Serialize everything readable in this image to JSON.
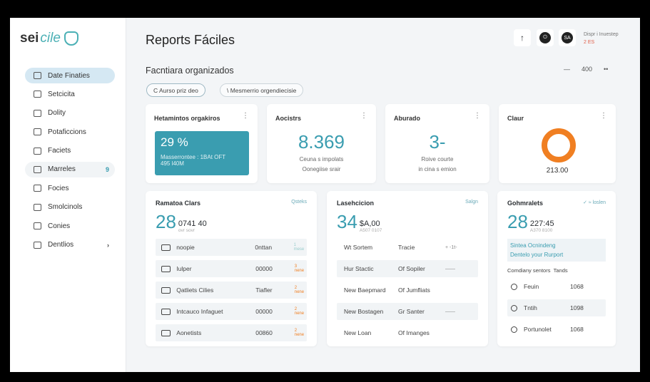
{
  "logo": {
    "text_a": "sei",
    "text_b": "cile"
  },
  "sidebar": {
    "items": [
      {
        "label": "Date Finaties",
        "icon": "document-icon"
      },
      {
        "label": "Setcicita",
        "icon": "home-icon"
      },
      {
        "label": "Dolity",
        "icon": "calendar-icon"
      },
      {
        "label": "Potaficcions",
        "icon": "report-icon"
      },
      {
        "label": "Faciets",
        "icon": "tooth-icon"
      },
      {
        "label": "Marreles",
        "icon": "file-icon",
        "badge": "9"
      },
      {
        "label": "Focies",
        "icon": "chat-icon"
      },
      {
        "label": "Smolcinols",
        "icon": "clipboard-icon"
      },
      {
        "label": "Conies",
        "icon": "settings-icon"
      },
      {
        "label": "Dentlios",
        "icon": "grid-icon",
        "chevron": "›"
      }
    ]
  },
  "header": {
    "title": "Reports Fáciles",
    "upload_icon": "↑",
    "user_name": "Dispr i Inuestep",
    "user_status": "2 ES"
  },
  "section": {
    "title": "Facntiara organizados",
    "zoom_minus": "—",
    "zoom_value": "400",
    "zoom_more": "••",
    "chips": [
      "C Aurso priz deo",
      "\\ Mesmerrio orgendiecisie"
    ]
  },
  "kpis": [
    {
      "title": "Hetamintos orgakiros",
      "value": "29 %",
      "detail1": "Masserrontee : 1BAt OFT",
      "detail2": "495 l40M"
    },
    {
      "title": "Aocistrs",
      "value": "8.369",
      "detail1": "Ceuna s impolats",
      "detail2": "Oonegiise srair"
    },
    {
      "title": "Aburado",
      "value": "3-",
      "detail1": "Roive courte",
      "detail2": "in cina s emion"
    },
    {
      "title": "Claur",
      "value": "213.00",
      "donut_color": "#f07f22"
    }
  ],
  "panel1": {
    "title": "Ramatoa Clars",
    "action": "Qsteks",
    "big": "28",
    "num": "0741 40",
    "sub": "ovr sovr",
    "rows": [
      [
        "noopie",
        "0nttan",
        "1 mese"
      ],
      [
        "Iulper",
        "00000",
        "3 nene"
      ],
      [
        "Qatliets Cilies",
        "Tiafler",
        "2 nene"
      ],
      [
        "Intcauco Infaguet",
        "00000",
        "2 nene"
      ],
      [
        "Aonetists",
        "00860",
        "2 nene"
      ]
    ]
  },
  "panel2": {
    "title": "Lasehcicion",
    "action": "Salgn",
    "big": "34",
    "num": "$A,00",
    "sub": "A507 0107",
    "rows": [
      [
        "Wt Sortem",
        "Tracie",
        "+ -1t-"
      ],
      [
        "Hur Stactic",
        "Of Sopiler",
        "——"
      ],
      [
        "New Baepmard",
        "Of Jumfliats",
        ""
      ],
      [
        "New Bostagen",
        "Gr Santer",
        "——"
      ],
      [
        "New Loan",
        "Of Imanges",
        ""
      ]
    ]
  },
  "panel3": {
    "title": "Gohmralets",
    "action": "✓ ≈ loslen",
    "big": "28",
    "num": "227:45",
    "sub": "A370 8100",
    "note1": "Sintea Ocnindeng",
    "note2": "Dentelo your Rurport",
    "col1": "Comdiany sentors",
    "col2": "Tands",
    "rows": [
      [
        "Feuin",
        "1068"
      ],
      [
        "Tntih",
        "1098"
      ],
      [
        "Portunolet",
        "1068"
      ]
    ]
  },
  "colors": {
    "accent": "#3a9db0",
    "orange": "#f07f22"
  }
}
